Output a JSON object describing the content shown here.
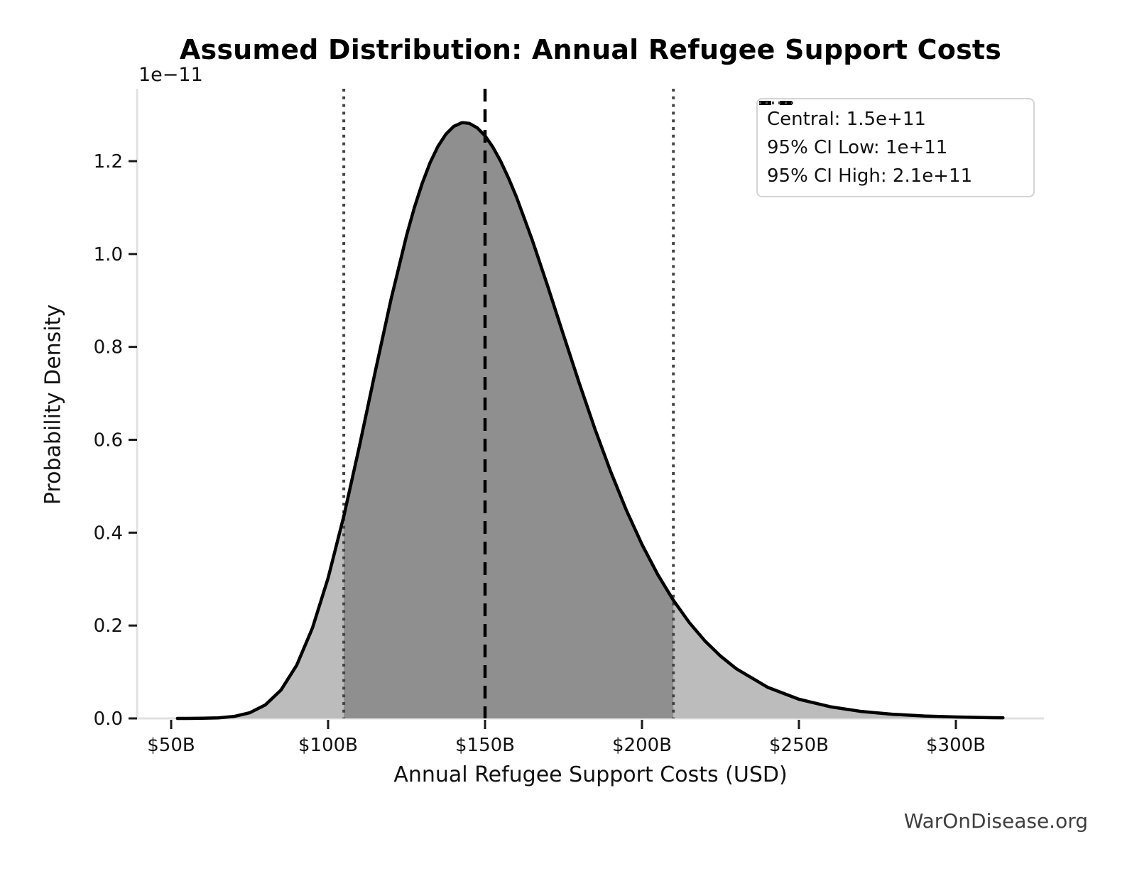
{
  "title": "Assumed Distribution: Annual Refugee Support Costs",
  "watermark": "WarOnDisease.org",
  "chart_data": {
    "type": "area",
    "title": "Assumed Distribution: Annual Refugee Support Costs",
    "xlabel": "Annual Refugee Support Costs (USD)",
    "ylabel": "Probability Density",
    "y_offset_label": "1e−11",
    "x_unit": "billions USD",
    "y_unit": "1e-11 probability density",
    "x_range_billions": [
      39,
      328
    ],
    "y_range": [
      0,
      1.356
    ],
    "grid": false,
    "legend_position": "upper right",
    "x_ticks": {
      "labels": [
        "$50B",
        "$100B",
        "$150B",
        "$200B",
        "$250B",
        "$300B"
      ],
      "values_billions": [
        50,
        100,
        150,
        200,
        250,
        300
      ]
    },
    "y_ticks": {
      "labels": [
        "0.0",
        "0.2",
        "0.4",
        "0.6",
        "0.8",
        "1.0",
        "1.2"
      ],
      "values": [
        0,
        0.2,
        0.4,
        0.6,
        0.8,
        1.0,
        1.2
      ]
    },
    "curve": {
      "description": "lognormal-shaped probability density, peak 1.283e-11 near $143B",
      "x_billions": [
        52,
        55,
        60,
        65,
        70,
        75,
        80,
        85,
        90,
        95,
        100,
        105,
        110,
        115,
        120,
        125,
        127.5,
        130,
        132.5,
        135,
        137.5,
        140,
        142.5,
        143,
        145,
        147.5,
        150,
        152.5,
        155,
        157.5,
        160,
        165,
        170,
        175,
        180,
        185,
        190,
        195,
        200,
        205,
        210,
        215,
        220,
        225,
        230,
        240,
        250,
        260,
        270,
        280,
        290,
        300,
        310,
        315
      ],
      "density_1e11": [
        3e-05,
        5e-05,
        0.0003,
        0.0012,
        0.0042,
        0.012,
        0.029,
        0.0612,
        0.1147,
        0.1944,
        0.3022,
        0.4353,
        0.5868,
        0.7461,
        0.9012,
        1.0401,
        1.1002,
        1.1526,
        1.1967,
        1.232,
        1.258,
        1.2748,
        1.2824,
        1.2828,
        1.2813,
        1.2717,
        1.2545,
        1.2302,
        1.1996,
        1.1635,
        1.1229,
        1.0309,
        0.93,
        0.8255,
        0.7223,
        0.6236,
        0.5319,
        0.4487,
        0.3747,
        0.31,
        0.2543,
        0.207,
        0.1673,
        0.1343,
        0.1072,
        0.0671,
        0.0413,
        0.025,
        0.0149,
        0.0088,
        0.0052,
        0.003,
        0.0017,
        0.0013
      ]
    },
    "lines": {
      "central_billions": 150,
      "ci_low_drawn_billions": 105,
      "ci_high_drawn_billions": 210
    },
    "legend": {
      "items": [
        {
          "label": "Central: 1.5e+11",
          "style": "dashed",
          "color": "#000000"
        },
        {
          "label": "95% CI Low: 1e+11",
          "style": "dotted",
          "color": "#4a4a4a"
        },
        {
          "label": "95% CI High: 2.1e+11",
          "style": "dotted",
          "color": "#4a4a4a"
        }
      ]
    },
    "colors": {
      "curve": "#000000",
      "fill_outer": "#bcbcbc",
      "fill_ci_region": "#8f8f8f",
      "central_line": "#000000",
      "ci_line": "#454545",
      "spine": "#e1e1e1",
      "tick": "#1a1a1a",
      "background": "#ffffff"
    }
  }
}
